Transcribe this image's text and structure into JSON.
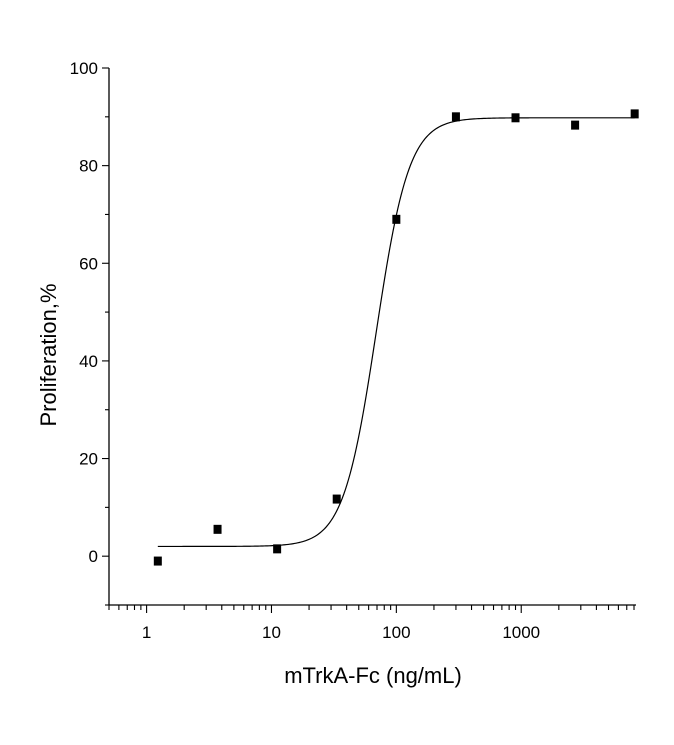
{
  "chart_data": {
    "type": "scatter",
    "title": "",
    "xlabel": "mTrkA-Fc (ng/mL)",
    "ylabel": "Proliferation,%",
    "x_scale": "log",
    "xlim": [
      0.5,
      8300
    ],
    "ylim": [
      -10,
      100
    ],
    "x_ticks": [
      1,
      10,
      100,
      1000
    ],
    "x_tick_labels": [
      "1",
      "10",
      "100",
      "1000"
    ],
    "y_ticks": [
      0,
      20,
      40,
      60,
      80,
      100
    ],
    "y_tick_labels": [
      "0",
      "20",
      "40",
      "60",
      "80",
      "100"
    ],
    "grid": false,
    "points": [
      {
        "x": 1.23,
        "y": -1
      },
      {
        "x": 3.7,
        "y": 5.5
      },
      {
        "x": 11.1,
        "y": 1.5
      },
      {
        "x": 33.3,
        "y": 11.7
      },
      {
        "x": 100,
        "y": 69
      },
      {
        "x": 300,
        "y": 90
      },
      {
        "x": 900,
        "y": 89.8
      },
      {
        "x": 2700,
        "y": 88.3
      },
      {
        "x": 8100,
        "y": 90.6
      }
    ],
    "fit": {
      "model": "four-parameter logistic",
      "bottom": 2,
      "top": 89.8,
      "ec50": 69,
      "hill": 3.3,
      "x_range": [
        1.23,
        8100
      ]
    }
  }
}
